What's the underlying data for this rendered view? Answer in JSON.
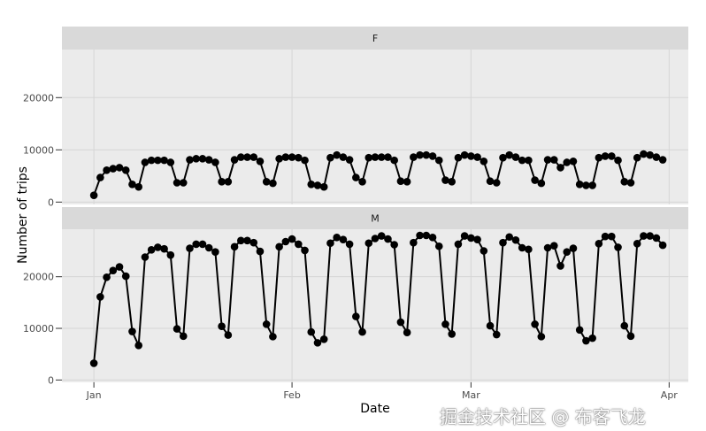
{
  "chart_data": {
    "type": "line",
    "title": "",
    "xlabel": "Date",
    "ylabel": "Number of trips",
    "x_ticks": [
      "Jan",
      "Feb",
      "Mar",
      "Apr"
    ],
    "y_ticks": [
      0,
      10000,
      20000
    ],
    "ylim": [
      -450,
      29200
    ],
    "xlim": [
      "12-27",
      "04-04"
    ],
    "grid": true,
    "markers": "filled-circle",
    "line_color": "#000000",
    "panel_color": "#EBEBEB",
    "strip_color": "#D9D9D9",
    "x": [
      "01-01",
      "01-02",
      "01-03",
      "01-04",
      "01-05",
      "01-06",
      "01-07",
      "01-08",
      "01-09",
      "01-10",
      "01-11",
      "01-12",
      "01-13",
      "01-14",
      "01-15",
      "01-16",
      "01-17",
      "01-18",
      "01-19",
      "01-20",
      "01-21",
      "01-22",
      "01-23",
      "01-24",
      "01-25",
      "01-26",
      "01-27",
      "01-28",
      "01-29",
      "01-30",
      "01-31",
      "02-01",
      "02-02",
      "02-03",
      "02-04",
      "02-05",
      "02-06",
      "02-07",
      "02-08",
      "02-09",
      "02-10",
      "02-11",
      "02-12",
      "02-13",
      "02-14",
      "02-15",
      "02-16",
      "02-17",
      "02-18",
      "02-19",
      "02-20",
      "02-21",
      "02-22",
      "02-23",
      "02-24",
      "02-25",
      "02-26",
      "02-27",
      "02-28",
      "03-01",
      "03-02",
      "03-03",
      "03-04",
      "03-05",
      "03-06",
      "03-07",
      "03-08",
      "03-09",
      "03-10",
      "03-11",
      "03-12",
      "03-13",
      "03-14",
      "03-15",
      "03-16",
      "03-17",
      "03-18",
      "03-19",
      "03-20",
      "03-21",
      "03-22",
      "03-23",
      "03-24",
      "03-25",
      "03-26",
      "03-27",
      "03-28",
      "03-29",
      "03-30",
      "03-31"
    ],
    "panels": [
      {
        "strip": "F",
        "values": [
          1300,
          4700,
          6100,
          6400,
          6600,
          6100,
          3400,
          2900,
          7600,
          8000,
          8000,
          8000,
          7600,
          3700,
          3700,
          8100,
          8300,
          8300,
          8100,
          7600,
          3900,
          3900,
          8100,
          8600,
          8600,
          8600,
          7800,
          3900,
          3600,
          8300,
          8600,
          8600,
          8500,
          8000,
          3400,
          3200,
          2900,
          8500,
          9000,
          8600,
          8100,
          4700,
          3900,
          8500,
          8600,
          8600,
          8600,
          8000,
          4000,
          3900,
          8600,
          9000,
          9000,
          8800,
          8000,
          4200,
          3900,
          8500,
          9000,
          8800,
          8600,
          7800,
          4000,
          3700,
          8500,
          9000,
          8600,
          8000,
          8000,
          4200,
          3600,
          8100,
          8100,
          6600,
          7600,
          7800,
          3400,
          3200,
          3200,
          8500,
          8800,
          8800,
          8000,
          3900,
          3700,
          8500,
          9200,
          9000,
          8600,
          8100
        ]
      },
      {
        "strip": "M",
        "values": [
          3250,
          16100,
          19900,
          21200,
          21900,
          20100,
          9400,
          6700,
          23800,
          25200,
          25700,
          25400,
          24200,
          9900,
          8500,
          25500,
          26300,
          26300,
          25600,
          24800,
          10400,
          8700,
          25800,
          27000,
          27000,
          26600,
          24900,
          10800,
          8400,
          25800,
          26800,
          27300,
          26300,
          25100,
          9300,
          7200,
          7900,
          26500,
          27600,
          27200,
          26300,
          12300,
          9300,
          26500,
          27400,
          27900,
          27300,
          26200,
          11200,
          9200,
          26600,
          28000,
          28000,
          27600,
          25900,
          10800,
          8900,
          26300,
          27900,
          27500,
          27200,
          25000,
          10500,
          8800,
          26600,
          27700,
          27100,
          25600,
          25300,
          10800,
          8400,
          25600,
          26000,
          22100,
          24800,
          25500,
          9700,
          7600,
          8100,
          26400,
          27800,
          27800,
          25700,
          10500,
          8500,
          26400,
          27900,
          27900,
          27500,
          26100
        ]
      }
    ]
  },
  "watermark": "掘金技术社区 @ 布客飞龙"
}
